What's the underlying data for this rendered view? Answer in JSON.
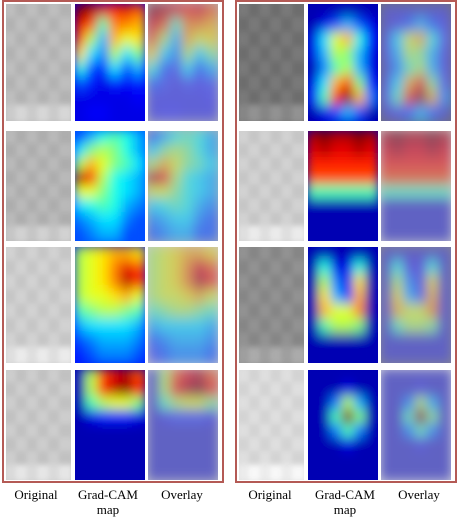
{
  "figure": {
    "column_labels": [
      "Original",
      "Grad-CAM map",
      "Overlay"
    ],
    "columns": [
      "original",
      "gradcam",
      "overlay"
    ],
    "panels": [
      {
        "id": "left",
        "rows": [
          {
            "heat": [
              [
                1.0,
                0.95,
                0.9,
                0.85,
                0.9,
                0.8
              ],
              [
                0.9,
                0.8,
                0.45,
                0.75,
                0.75,
                0.7
              ],
              [
                0.8,
                0.55,
                0.3,
                0.7,
                0.6,
                0.65
              ],
              [
                0.65,
                0.35,
                0.25,
                0.55,
                0.35,
                0.5
              ],
              [
                0.4,
                0.2,
                0.15,
                0.35,
                0.2,
                0.3
              ],
              [
                0.2,
                0.15,
                0.1,
                0.15,
                0.12,
                0.15
              ],
              [
                0.1,
                0.1,
                0.1,
                0.1,
                0.1,
                0.12
              ],
              [
                0.1,
                0.12,
                0.12,
                0.1,
                0.1,
                0.1
              ]
            ],
            "gray": 0.72
          },
          {
            "heat": [
              [
                0.2,
                0.3,
                0.4,
                0.45,
                0.4,
                0.3
              ],
              [
                0.35,
                0.5,
                0.55,
                0.5,
                0.4,
                0.3
              ],
              [
                0.55,
                0.7,
                0.6,
                0.5,
                0.45,
                0.35
              ],
              [
                0.95,
                0.85,
                0.55,
                0.4,
                0.35,
                0.3
              ],
              [
                0.6,
                0.6,
                0.5,
                0.4,
                0.35,
                0.3
              ],
              [
                0.35,
                0.4,
                0.45,
                0.4,
                0.3,
                0.25
              ],
              [
                0.25,
                0.3,
                0.35,
                0.35,
                0.25,
                0.2
              ],
              [
                0.2,
                0.25,
                0.3,
                0.3,
                0.2,
                0.2
              ]
            ],
            "gray": 0.7
          },
          {
            "heat": [
              [
                0.55,
                0.6,
                0.65,
                0.7,
                0.7,
                0.65
              ],
              [
                0.55,
                0.6,
                0.65,
                0.75,
                0.9,
                0.8
              ],
              [
                0.55,
                0.6,
                0.65,
                0.75,
                0.95,
                0.85
              ],
              [
                0.55,
                0.6,
                0.6,
                0.65,
                0.7,
                0.6
              ],
              [
                0.45,
                0.5,
                0.55,
                0.55,
                0.5,
                0.45
              ],
              [
                0.3,
                0.35,
                0.35,
                0.35,
                0.35,
                0.3
              ],
              [
                0.2,
                0.25,
                0.3,
                0.3,
                0.3,
                0.25
              ],
              [
                0.15,
                0.2,
                0.25,
                0.25,
                0.25,
                0.2
              ]
            ],
            "gray": 0.8
          },
          {
            "heat": [
              [
                0.05,
                0.55,
                0.8,
                0.9,
                0.95,
                0.8
              ],
              [
                0.05,
                0.55,
                0.85,
                0.95,
                1.0,
                0.85
              ],
              [
                0.05,
                0.45,
                0.55,
                0.6,
                0.6,
                0.5
              ],
              [
                0.05,
                0.1,
                0.15,
                0.15,
                0.15,
                0.1
              ],
              [
                0.05,
                0.05,
                0.05,
                0.05,
                0.05,
                0.05
              ],
              [
                0.05,
                0.05,
                0.05,
                0.05,
                0.05,
                0.05
              ],
              [
                0.05,
                0.05,
                0.05,
                0.05,
                0.05,
                0.05
              ],
              [
                0.05,
                0.05,
                0.05,
                0.05,
                0.05,
                0.05
              ]
            ],
            "gray": 0.78
          }
        ]
      },
      {
        "id": "right",
        "rows": [
          {
            "heat": [
              [
                0.05,
                0.05,
                0.05,
                0.05,
                0.05,
                0.05
              ],
              [
                0.05,
                0.1,
                0.2,
                0.3,
                0.2,
                0.1
              ],
              [
                0.1,
                0.35,
                0.6,
                0.7,
                0.4,
                0.15
              ],
              [
                0.1,
                0.3,
                0.55,
                0.5,
                0.3,
                0.1
              ],
              [
                0.05,
                0.25,
                0.45,
                0.55,
                0.3,
                0.1
              ],
              [
                0.1,
                0.35,
                0.7,
                0.85,
                0.5,
                0.15
              ],
              [
                0.15,
                0.45,
                0.85,
                1.0,
                0.7,
                0.25
              ],
              [
                0.05,
                0.1,
                0.2,
                0.3,
                0.2,
                0.05
              ]
            ],
            "gray": 0.45
          },
          {
            "heat": [
              [
                0.95,
                1.0,
                0.95,
                0.95,
                1.0,
                0.95
              ],
              [
                0.9,
                0.95,
                0.9,
                0.9,
                0.95,
                0.9
              ],
              [
                0.85,
                0.85,
                0.85,
                0.85,
                0.85,
                0.85
              ],
              [
                0.8,
                0.8,
                0.8,
                0.8,
                0.8,
                0.8
              ],
              [
                0.45,
                0.45,
                0.45,
                0.45,
                0.45,
                0.45
              ],
              [
                0.05,
                0.05,
                0.05,
                0.05,
                0.05,
                0.05
              ],
              [
                0.05,
                0.05,
                0.05,
                0.05,
                0.05,
                0.05
              ],
              [
                0.05,
                0.05,
                0.05,
                0.05,
                0.05,
                0.05
              ]
            ],
            "gray": 0.8
          },
          {
            "heat": [
              [
                0.05,
                0.05,
                0.05,
                0.05,
                0.05,
                0.05
              ],
              [
                0.05,
                0.4,
                0.1,
                0.1,
                0.4,
                0.05
              ],
              [
                0.05,
                0.55,
                0.25,
                0.1,
                0.65,
                0.05
              ],
              [
                0.05,
                0.65,
                0.3,
                0.15,
                0.7,
                0.05
              ],
              [
                0.05,
                0.7,
                0.6,
                0.6,
                0.75,
                0.05
              ],
              [
                0.05,
                0.45,
                0.55,
                0.55,
                0.5,
                0.05
              ],
              [
                0.05,
                0.05,
                0.05,
                0.05,
                0.05,
                0.05
              ],
              [
                0.05,
                0.05,
                0.05,
                0.05,
                0.05,
                0.05
              ]
            ],
            "gray": 0.55
          },
          {
            "heat": [
              [
                0.05,
                0.05,
                0.05,
                0.05,
                0.05,
                0.05
              ],
              [
                0.05,
                0.05,
                0.05,
                0.1,
                0.05,
                0.05
              ],
              [
                0.05,
                0.05,
                0.25,
                0.55,
                0.3,
                0.05
              ],
              [
                0.05,
                0.05,
                0.45,
                1.0,
                0.5,
                0.05
              ],
              [
                0.05,
                0.05,
                0.25,
                0.45,
                0.25,
                0.05
              ],
              [
                0.05,
                0.05,
                0.05,
                0.1,
                0.05,
                0.05
              ],
              [
                0.05,
                0.05,
                0.05,
                0.05,
                0.05,
                0.05
              ],
              [
                0.05,
                0.05,
                0.05,
                0.05,
                0.05,
                0.05
              ]
            ],
            "gray": 0.85
          }
        ]
      }
    ]
  },
  "colors": {
    "panel_border": "#b45a55",
    "overlay_tint": "#8f96c8"
  }
}
